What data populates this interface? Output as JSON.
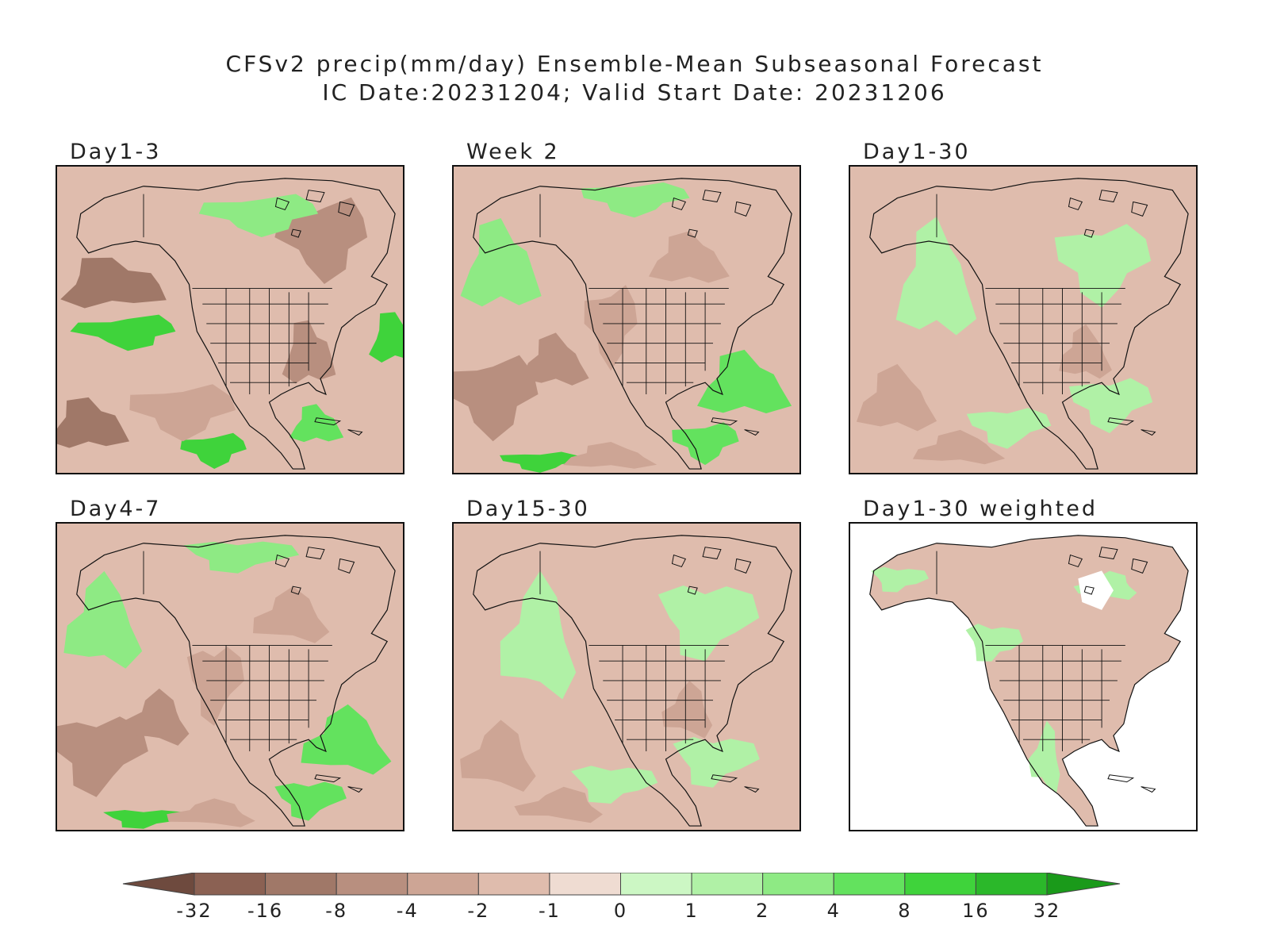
{
  "title": {
    "line1": "CFSv2 precip(mm/day) Ensemble-Mean Subseasonal Forecast",
    "line2": "IC Date:20231204; Valid Start Date: 20231206"
  },
  "panels": [
    {
      "label": "Day1-3",
      "style": "strong"
    },
    {
      "label": "Week 2",
      "style": "mixed"
    },
    {
      "label": "Day1-30",
      "style": "mild"
    },
    {
      "label": "Day4-7",
      "style": "mixed"
    },
    {
      "label": "Day15-30",
      "style": "mild"
    },
    {
      "label": "Day1-30 weighted",
      "style": "weighted"
    }
  ],
  "colorbar": {
    "levels": [
      "-32",
      "-16",
      "-8",
      "-4",
      "-2",
      "-1",
      "0",
      "1",
      "2",
      "4",
      "8",
      "16",
      "32"
    ],
    "colors": [
      "#6e4a3e",
      "#8b6153",
      "#a07868",
      "#b88f7f",
      "#cda595",
      "#dfbcad",
      "#efdcd2",
      "#ccf7c4",
      "#b0f1a6",
      "#8eea84",
      "#63e25e",
      "#3fd33b",
      "#2bb82a",
      "#1a9a1a"
    ]
  }
}
